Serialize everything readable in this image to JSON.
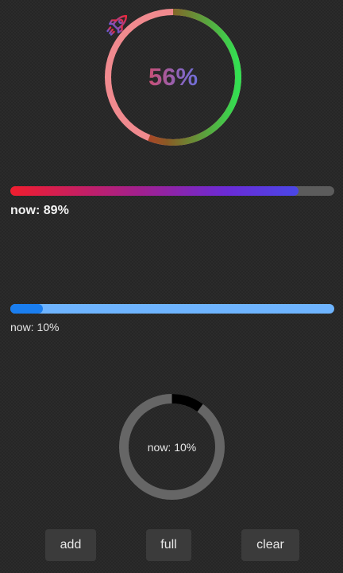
{
  "gradient_ring": {
    "percent_label": "56%",
    "progress": 0.56,
    "icon": "rocket-icon"
  },
  "gradient_bar": {
    "label": "now: 89%",
    "progress": 0.89
  },
  "blue_bar": {
    "label": "now: 10%",
    "progress": 0.1
  },
  "gray_ring": {
    "label": "now: 10%",
    "progress": 0.1
  },
  "buttons": {
    "add_label": "add",
    "full_label": "full",
    "clear_label": "clear"
  },
  "colors": {
    "background": "#262626",
    "ring_track": "#f08a8f",
    "ring_start": "#f21a2a",
    "ring_mid": "#7a6a25",
    "ring_end": "#33e052",
    "bar_gradient_start": "#f01e2e",
    "bar_gradient_end": "#4a47e6",
    "bar_track": "#5c5c5c",
    "blue_fill": "#1a7ef0",
    "blue_track": "#6eb4ff",
    "gray_track": "#666666",
    "gray_fill": "#000000",
    "button_bg": "#3b3b3b"
  }
}
